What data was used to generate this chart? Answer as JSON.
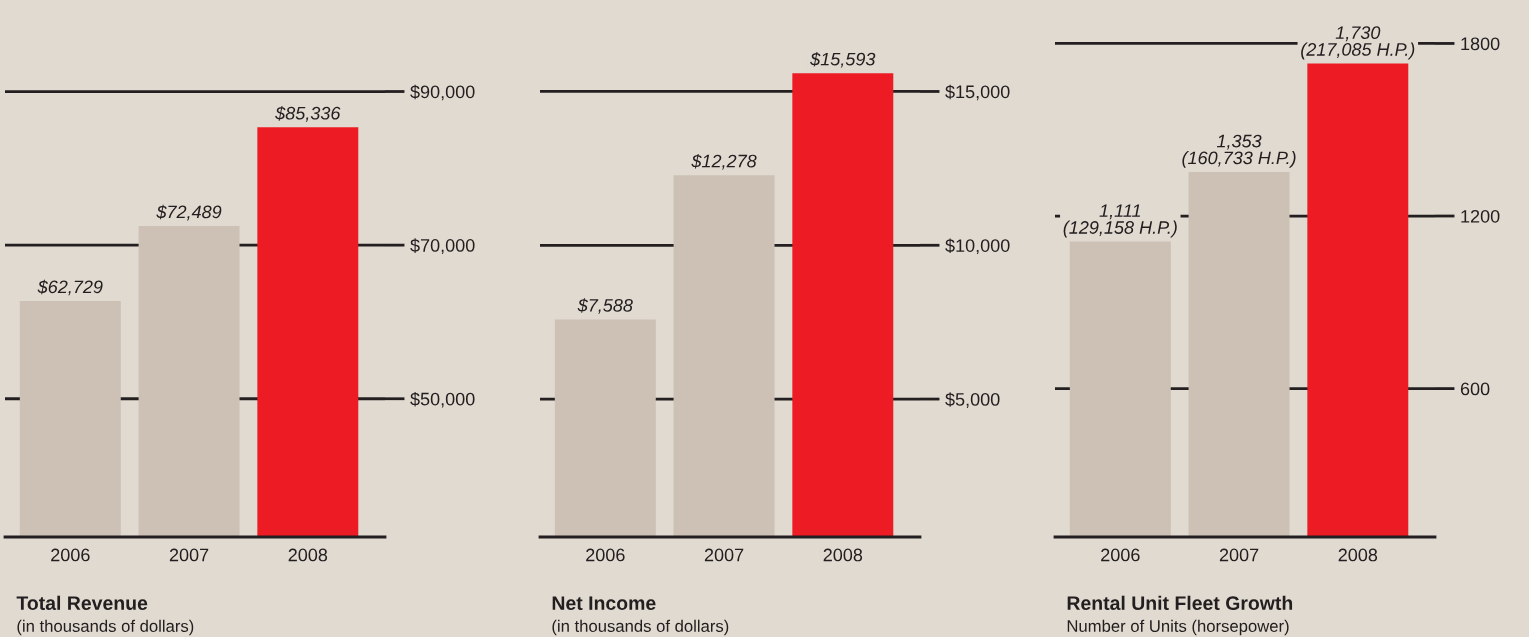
{
  "chart_data": [
    {
      "type": "bar",
      "title": "Total Revenue",
      "subtitle": "(in thousands of dollars)",
      "categories": [
        "2006",
        "2007",
        "2008"
      ],
      "values": [
        62729,
        72489,
        85336
      ],
      "colors": [
        "#cdc0b4",
        "#cdc0b4",
        "#ed1c24"
      ],
      "value_labels": [
        "$62,729",
        "$72,489",
        "$85,336"
      ],
      "ylim": [
        32000,
        101500
      ],
      "yticks": [
        {
          "value": 50000,
          "label": "$50,000"
        },
        {
          "value": 70000,
          "label": "$70,000"
        },
        {
          "value": 90000,
          "label": "$90,000"
        }
      ],
      "grid": "y"
    },
    {
      "type": "bar",
      "title": "Net Income",
      "subtitle": "(in thousands of dollars)",
      "categories": [
        "2006",
        "2007",
        "2008"
      ],
      "values": [
        7588,
        12278,
        15593
      ],
      "colors": [
        "#cdc0b4",
        "#cdc0b4",
        "#ed1c24"
      ],
      "value_labels": [
        "$7,588",
        "$12,278",
        "$15,593"
      ],
      "ylim": [
        516,
        17870
      ],
      "yticks": [
        {
          "value": 5000,
          "label": "$5,000"
        },
        {
          "value": 10000,
          "label": "$10,000"
        },
        {
          "value": 15000,
          "label": "$15,000"
        }
      ],
      "grid": "y"
    },
    {
      "type": "bar",
      "title": "Rental Unit Fleet Growth",
      "subtitle": "Number of Units (horsepower)",
      "categories": [
        "2006",
        "2007",
        "2008"
      ],
      "values": [
        1111,
        1353,
        1730
      ],
      "colors": [
        "#cdc0b4",
        "#cdc0b4",
        "#ed1c24"
      ],
      "value_labels": [
        "1,111\n(129,158 H.P.)",
        "1,353\n(160,733 H.P.)",
        "1,730\n(217,085 H.P.)"
      ],
      "ylim": [
        84,
        1940
      ],
      "yticks": [
        600,
        1200,
        1800
      ],
      "grid": "y"
    }
  ]
}
